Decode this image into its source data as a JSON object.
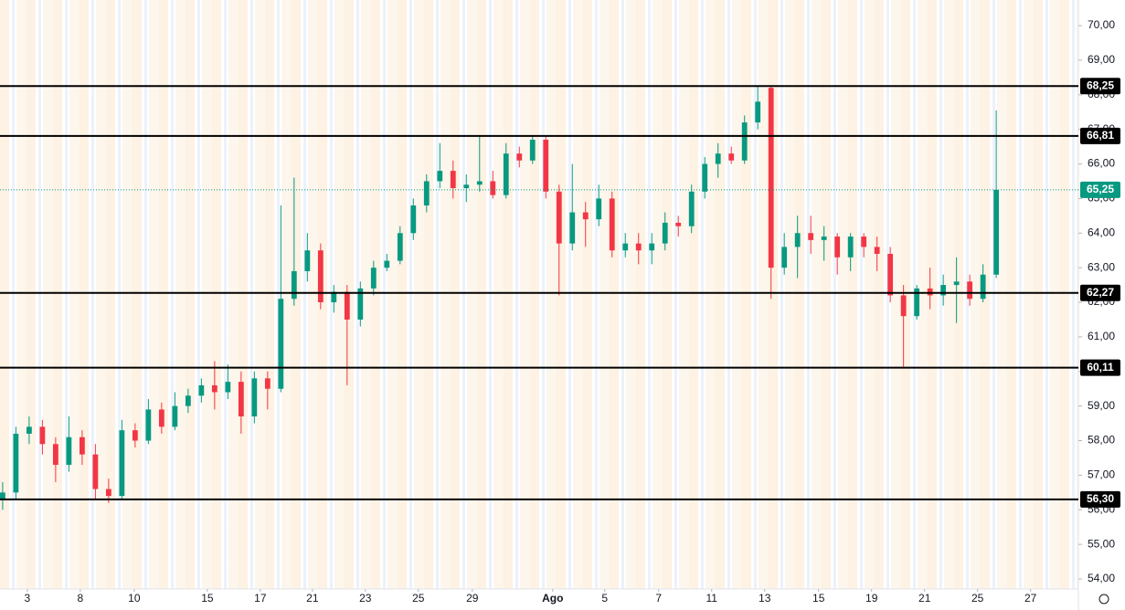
{
  "chart_data": {
    "type": "candlestick",
    "up_color": "#089981",
    "down_color": "#f23645",
    "ylim": [
      53.71,
      70.74
    ],
    "yticks": [
      {
        "value": 54,
        "label": "54,00"
      },
      {
        "value": 55,
        "label": "55,00"
      },
      {
        "value": 56,
        "label": "56,00"
      },
      {
        "value": 57,
        "label": "57,00"
      },
      {
        "value": 58,
        "label": "58,00"
      },
      {
        "value": 59,
        "label": "59,00"
      },
      {
        "value": 60,
        "label": "60,00"
      },
      {
        "value": 61,
        "label": "61,00"
      },
      {
        "value": 62,
        "label": "62,00"
      },
      {
        "value": 63,
        "label": "63,00"
      },
      {
        "value": 64,
        "label": "64,00"
      },
      {
        "value": 65,
        "label": "65,00"
      },
      {
        "value": 66,
        "label": "66,00"
      },
      {
        "value": 67,
        "label": "67,00"
      },
      {
        "value": 68,
        "label": "68,00"
      },
      {
        "value": 69,
        "label": "69,00"
      },
      {
        "value": 70,
        "label": "70,00"
      }
    ],
    "xlim": [
      -0.2,
      81.2
    ],
    "xticks": [
      {
        "value": 1.86,
        "label": "3"
      },
      {
        "value": 5.86,
        "label": "8"
      },
      {
        "value": 9.93,
        "label": "10"
      },
      {
        "value": 15.45,
        "label": "15"
      },
      {
        "value": 19.45,
        "label": "17"
      },
      {
        "value": 23.38,
        "label": "21"
      },
      {
        "value": 27.38,
        "label": "23"
      },
      {
        "value": 31.38,
        "label": "25"
      },
      {
        "value": 35.45,
        "label": "29"
      },
      {
        "value": 41.52,
        "label": "Ago"
      },
      {
        "value": 45.45,
        "label": "5"
      },
      {
        "value": 49.52,
        "label": "7"
      },
      {
        "value": 53.52,
        "label": "11"
      },
      {
        "value": 57.52,
        "label": "13"
      },
      {
        "value": 61.59,
        "label": "15"
      },
      {
        "value": 65.59,
        "label": "19"
      },
      {
        "value": 69.59,
        "label": "21"
      },
      {
        "value": 73.59,
        "label": "25"
      },
      {
        "value": 77.59,
        "label": "27"
      }
    ],
    "levels": [
      {
        "value": 68.25,
        "label": "68,25"
      },
      {
        "value": 66.81,
        "label": "66,81"
      },
      {
        "value": 62.27,
        "label": "62,27"
      },
      {
        "value": 60.11,
        "label": "60,11"
      },
      {
        "value": 56.3,
        "label": "56,30"
      }
    ],
    "last_price": {
      "value": 65.25,
      "label": "65,25"
    },
    "candles": [
      [
        56.3,
        56.8,
        56.0,
        56.5
      ],
      [
        56.5,
        58.4,
        56.3,
        58.2
      ],
      [
        58.2,
        58.7,
        57.9,
        58.4
      ],
      [
        58.4,
        58.6,
        57.6,
        57.9
      ],
      [
        57.9,
        58.1,
        56.8,
        57.3
      ],
      [
        57.3,
        58.7,
        57.1,
        58.1
      ],
      [
        58.1,
        58.3,
        57.3,
        57.6
      ],
      [
        57.6,
        57.9,
        56.3,
        56.6
      ],
      [
        56.6,
        56.9,
        56.2,
        56.4
      ],
      [
        56.4,
        58.6,
        56.3,
        58.3
      ],
      [
        58.3,
        58.5,
        57.8,
        58.0
      ],
      [
        58.0,
        59.2,
        57.9,
        58.9
      ],
      [
        58.9,
        59.1,
        58.2,
        58.4
      ],
      [
        58.4,
        59.4,
        58.3,
        59.0
      ],
      [
        59.0,
        59.5,
        58.8,
        59.3
      ],
      [
        59.3,
        59.8,
        59.1,
        59.6
      ],
      [
        59.6,
        60.3,
        58.9,
        59.4
      ],
      [
        59.4,
        60.2,
        59.2,
        59.7
      ],
      [
        59.7,
        60.0,
        58.2,
        58.7
      ],
      [
        58.7,
        60.0,
        58.5,
        59.8
      ],
      [
        59.8,
        60.0,
        58.9,
        59.5
      ],
      [
        59.5,
        64.8,
        59.4,
        62.1
      ],
      [
        62.1,
        65.6,
        61.9,
        62.9
      ],
      [
        62.9,
        64.0,
        62.6,
        63.5
      ],
      [
        63.5,
        63.7,
        61.8,
        62.0
      ],
      [
        62.0,
        62.5,
        61.7,
        62.3
      ],
      [
        62.3,
        62.5,
        59.6,
        61.5
      ],
      [
        61.5,
        62.6,
        61.3,
        62.4
      ],
      [
        62.4,
        63.2,
        62.2,
        63.0
      ],
      [
        63.0,
        63.4,
        62.9,
        63.2
      ],
      [
        63.2,
        64.2,
        63.1,
        64.0
      ],
      [
        64.0,
        65.0,
        63.8,
        64.8
      ],
      [
        64.8,
        65.7,
        64.6,
        65.5
      ],
      [
        65.5,
        66.6,
        65.3,
        65.8
      ],
      [
        65.8,
        66.1,
        65.0,
        65.3
      ],
      [
        65.3,
        65.7,
        64.9,
        65.4
      ],
      [
        65.4,
        66.8,
        65.2,
        65.5
      ],
      [
        65.5,
        65.8,
        65.0,
        65.1
      ],
      [
        65.1,
        66.6,
        65.0,
        66.3
      ],
      [
        66.3,
        66.5,
        65.9,
        66.1
      ],
      [
        66.1,
        66.8,
        66.0,
        66.7
      ],
      [
        66.7,
        66.8,
        65.0,
        65.2
      ],
      [
        65.2,
        65.4,
        62.2,
        63.7
      ],
      [
        63.7,
        66.0,
        63.5,
        64.6
      ],
      [
        64.6,
        64.9,
        63.6,
        64.4
      ],
      [
        64.4,
        65.4,
        64.2,
        65.0
      ],
      [
        65.0,
        65.2,
        63.3,
        63.5
      ],
      [
        63.5,
        64.0,
        63.3,
        63.7
      ],
      [
        63.7,
        64.0,
        63.1,
        63.5
      ],
      [
        63.5,
        64.0,
        63.1,
        63.7
      ],
      [
        63.7,
        64.6,
        63.5,
        64.3
      ],
      [
        64.3,
        64.5,
        63.9,
        64.2
      ],
      [
        64.2,
        65.4,
        64.0,
        65.2
      ],
      [
        65.2,
        66.2,
        65.0,
        66.0
      ],
      [
        66.0,
        66.6,
        65.6,
        66.3
      ],
      [
        66.3,
        66.5,
        66.0,
        66.1
      ],
      [
        66.1,
        67.4,
        66.0,
        67.2
      ],
      [
        67.2,
        68.25,
        67.0,
        67.8
      ],
      [
        68.2,
        68.25,
        62.1,
        63.0
      ],
      [
        63.0,
        64.0,
        62.8,
        63.6
      ],
      [
        63.6,
        64.5,
        62.7,
        64.0
      ],
      [
        64.0,
        64.5,
        63.4,
        63.8
      ],
      [
        63.8,
        64.2,
        63.2,
        63.9
      ],
      [
        63.9,
        64.0,
        62.8,
        63.3
      ],
      [
        63.3,
        64.0,
        62.9,
        63.9
      ],
      [
        63.9,
        64.0,
        63.3,
        63.6
      ],
      [
        63.6,
        63.9,
        62.9,
        63.4
      ],
      [
        63.4,
        63.6,
        62.0,
        62.2
      ],
      [
        62.2,
        62.5,
        60.1,
        61.6
      ],
      [
        61.6,
        62.5,
        61.5,
        62.4
      ],
      [
        62.4,
        63.0,
        61.8,
        62.2
      ],
      [
        62.2,
        62.8,
        61.9,
        62.5
      ],
      [
        62.5,
        63.3,
        61.4,
        62.6
      ],
      [
        62.6,
        62.8,
        61.9,
        62.1
      ],
      [
        62.1,
        63.1,
        62.0,
        62.8
      ],
      [
        62.8,
        67.55,
        62.7,
        65.25
      ]
    ]
  }
}
